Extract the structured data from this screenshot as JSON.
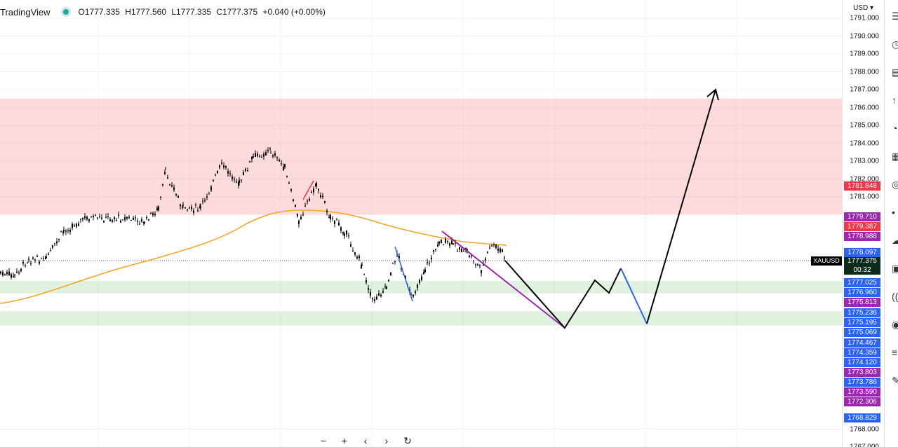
{
  "header": {
    "brand": "TradingView",
    "ohlc": {
      "open": "O1777.335",
      "high": "H1777.560",
      "low": "L1777.335",
      "close": "C1777.375",
      "change": "+0.040 (+0.00%)"
    }
  },
  "axis": {
    "currency": "USD",
    "ticks": [
      "1791.000",
      "1790.000",
      "1789.000",
      "1788.000",
      "1787.000",
      "1786.000",
      "1785.000",
      "1784.000",
      "1783.000",
      "1782.000",
      "1781.000",
      "1768.000",
      "1767.000"
    ],
    "tick_values": [
      1791,
      1790,
      1789,
      1788,
      1787,
      1786,
      1785,
      1784,
      1783,
      1782,
      1781,
      1768,
      1767
    ]
  },
  "symbol_label": "XAUUSD",
  "current_price": {
    "price": "1777.375",
    "countdown": "00:32"
  },
  "price_labels": [
    {
      "text": "1781.848",
      "color": "#f23645"
    },
    {
      "text": "1779.710",
      "color": "#9c27b0"
    },
    {
      "text": "1779.387",
      "color": "#f23645"
    },
    {
      "text": "1778.988",
      "color": "#9c27b0"
    },
    {
      "text": "1778.097",
      "color": "#2962ff"
    },
    {
      "text": "1777.025",
      "color": "#2962ff"
    },
    {
      "text": "1776.960",
      "color": "#2962ff"
    },
    {
      "text": "1775.813",
      "color": "#9c27b0"
    },
    {
      "text": "1775.236",
      "color": "#2962ff"
    },
    {
      "text": "1775.195",
      "color": "#2962ff"
    },
    {
      "text": "1775.069",
      "color": "#2962ff"
    },
    {
      "text": "1774.467",
      "color": "#2962ff"
    },
    {
      "text": "1774.359",
      "color": "#2962ff"
    },
    {
      "text": "1774.120",
      "color": "#2962ff"
    },
    {
      "text": "1773.803",
      "color": "#9c27b0"
    },
    {
      "text": "1773.786",
      "color": "#2962ff"
    },
    {
      "text": "1773.590",
      "color": "#9c27b0"
    },
    {
      "text": "1772.306",
      "color": "#9c27b0"
    },
    {
      "text": "1768.829",
      "color": "#2962ff"
    }
  ],
  "zones": [
    {
      "name": "supply-zone",
      "from": 1780.0,
      "to": 1786.5,
      "color": "#f23645"
    },
    {
      "name": "demand-zone-upper",
      "from": 1775.6,
      "to": 1776.3,
      "color": "#4caf50"
    },
    {
      "name": "demand-zone-lower",
      "from": 1773.8,
      "to": 1774.6,
      "color": "#4caf50"
    }
  ],
  "bottom_controls": [
    {
      "name": "zoom-out-button",
      "glyph": "−"
    },
    {
      "name": "zoom-in-button",
      "glyph": "+"
    },
    {
      "name": "scroll-left-button",
      "glyph": "‹"
    },
    {
      "name": "scroll-right-button",
      "glyph": "›"
    },
    {
      "name": "reset-chart-button",
      "glyph": "↻"
    }
  ],
  "right_toolbar_icons": [
    "watchlist-icon",
    "alerts-icon",
    "data-window-icon",
    "hotlist-icon",
    "calendar-icon",
    "ideas-icon",
    "notifications-icon",
    "chat-icon",
    "streams-icon",
    "broadcast-icon",
    "help-icon",
    "pine-icon",
    "settings-icon",
    "more-icon"
  ],
  "colors": {
    "candle": "#000000",
    "ema": "#f5a623",
    "purple_line": "#9c27b0",
    "blue_leg": "#2962ff",
    "projection": "#000000"
  }
}
